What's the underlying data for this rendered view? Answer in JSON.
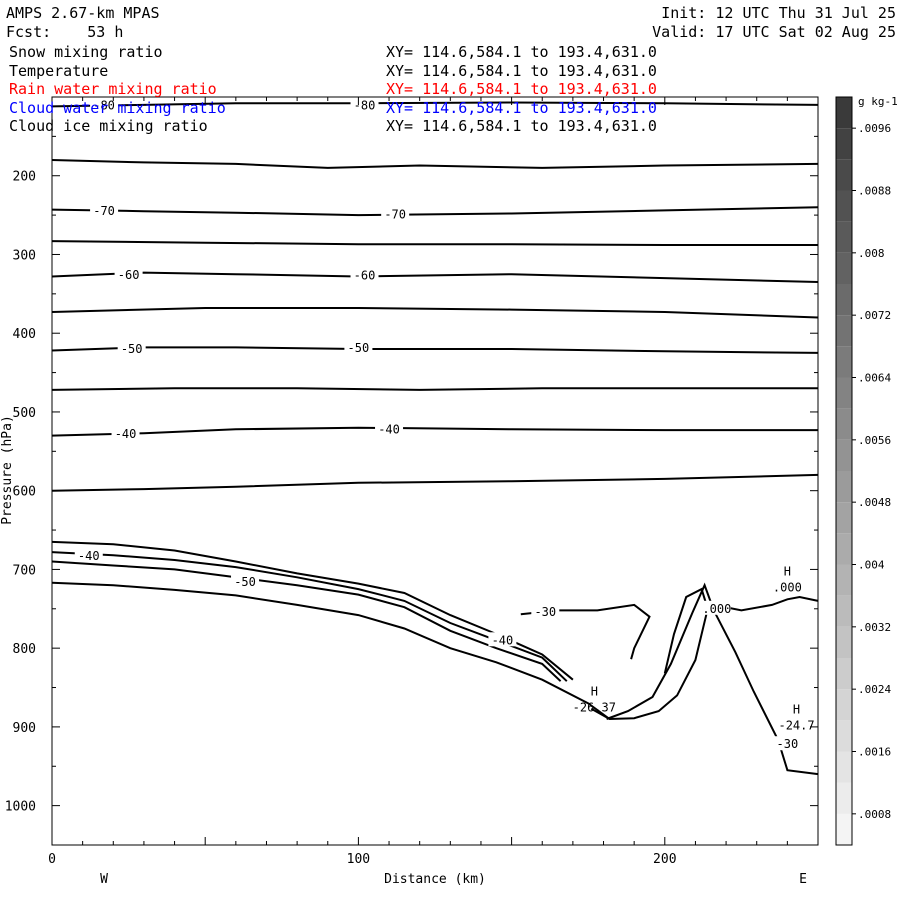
{
  "header": {
    "model": "AMPS 2.67-km MPAS",
    "forecast": "Fcst:    53 h",
    "init": "Init: 12 UTC Thu 31 Jul 25",
    "valid": "Valid: 17 UTC Sat 02 Aug 25"
  },
  "fields": [
    {
      "name": "Snow mixing ratio",
      "xy": "XY= 114.6,584.1 to 193.4,631.0",
      "color": "#000000"
    },
    {
      "name": "Temperature",
      "xy": "XY= 114.6,584.1 to 193.4,631.0",
      "color": "#000000"
    },
    {
      "name": "Rain water mixing ratio",
      "xy": "XY= 114.6,584.1 to 193.4,631.0",
      "color": "#ff0000"
    },
    {
      "name": "Cloud water mixing ratio",
      "xy": "XY= 114.6,584.1 to 193.4,631.0",
      "color": "#0000ff"
    },
    {
      "name": "Cloud ice mixing ratio",
      "xy": "XY= 114.6,584.1 to 193.4,631.0",
      "color": "#000000"
    }
  ],
  "chart_data": {
    "type": "line",
    "title": "",
    "xlabel": "Distance (km)",
    "ylabel": "Pressure (hPa)",
    "xlim": [
      0,
      250
    ],
    "ylim": [
      100,
      1050
    ],
    "y_reversed": true,
    "x_ticks": [
      0,
      100,
      200
    ],
    "y_ticks": [
      200,
      300,
      400,
      500,
      600,
      700,
      800,
      900,
      1000
    ],
    "x_end_labels": {
      "left": "W",
      "right": "E"
    },
    "grid": false,
    "series": [
      {
        "level": -80,
        "points": [
          [
            0,
            112
          ],
          [
            30,
            110
          ],
          [
            60,
            108
          ],
          [
            100,
            108
          ],
          [
            150,
            107
          ],
          [
            200,
            108
          ],
          [
            250,
            110
          ]
        ]
      },
      {
        "level": -75,
        "points": [
          [
            0,
            180
          ],
          [
            30,
            183
          ],
          [
            60,
            185
          ],
          [
            90,
            190
          ],
          [
            120,
            187
          ],
          [
            160,
            190
          ],
          [
            200,
            187
          ],
          [
            250,
            185
          ]
        ]
      },
      {
        "level": -70,
        "points": [
          [
            0,
            243
          ],
          [
            30,
            245
          ],
          [
            60,
            247
          ],
          [
            100,
            250
          ],
          [
            150,
            248
          ],
          [
            200,
            244
          ],
          [
            250,
            240
          ]
        ]
      },
      {
        "level": -65,
        "points": [
          [
            0,
            283
          ],
          [
            50,
            285
          ],
          [
            100,
            287
          ],
          [
            150,
            287
          ],
          [
            200,
            288
          ],
          [
            250,
            288
          ]
        ]
      },
      {
        "level": -60,
        "points": [
          [
            0,
            328
          ],
          [
            30,
            323
          ],
          [
            60,
            325
          ],
          [
            100,
            328
          ],
          [
            150,
            325
          ],
          [
            200,
            330
          ],
          [
            250,
            335
          ]
        ]
      },
      {
        "level": -55,
        "points": [
          [
            0,
            373
          ],
          [
            50,
            368
          ],
          [
            100,
            368
          ],
          [
            150,
            370
          ],
          [
            200,
            373
          ],
          [
            250,
            380
          ]
        ]
      },
      {
        "level": -50,
        "points": [
          [
            0,
            422
          ],
          [
            30,
            418
          ],
          [
            60,
            418
          ],
          [
            100,
            420
          ],
          [
            150,
            420
          ],
          [
            200,
            423
          ],
          [
            250,
            425
          ]
        ]
      },
      {
        "level": -45,
        "points": [
          [
            0,
            472
          ],
          [
            40,
            470
          ],
          [
            80,
            470
          ],
          [
            120,
            472
          ],
          [
            160,
            470
          ],
          [
            200,
            470
          ],
          [
            250,
            470
          ]
        ]
      },
      {
        "level": -40,
        "points": [
          [
            0,
            530
          ],
          [
            30,
            527
          ],
          [
            60,
            522
          ],
          [
            100,
            520
          ],
          [
            150,
            522
          ],
          [
            200,
            523
          ],
          [
            250,
            523
          ]
        ]
      },
      {
        "level": -35,
        "points": [
          [
            0,
            600
          ],
          [
            30,
            598
          ],
          [
            60,
            595
          ],
          [
            100,
            590
          ],
          [
            150,
            588
          ],
          [
            200,
            585
          ],
          [
            250,
            580
          ]
        ]
      },
      {
        "level": -40,
        "points": [
          [
            0,
            665
          ],
          [
            20,
            668
          ],
          [
            40,
            676
          ],
          [
            60,
            690
          ],
          [
            80,
            705
          ],
          [
            100,
            718
          ],
          [
            115,
            730
          ],
          [
            130,
            758
          ],
          [
            145,
            782
          ],
          [
            160,
            808
          ],
          [
            170,
            840
          ]
        ]
      },
      {
        "level": -45,
        "points": [
          [
            0,
            678
          ],
          [
            20,
            682
          ],
          [
            40,
            688
          ],
          [
            60,
            697
          ],
          [
            80,
            710
          ],
          [
            100,
            725
          ],
          [
            115,
            740
          ],
          [
            130,
            768
          ],
          [
            145,
            790
          ],
          [
            160,
            812
          ],
          [
            168,
            842
          ]
        ]
      },
      {
        "level": -50,
        "points": [
          [
            0,
            690
          ],
          [
            20,
            695
          ],
          [
            40,
            700
          ],
          [
            60,
            710
          ],
          [
            80,
            720
          ],
          [
            100,
            732
          ],
          [
            115,
            748
          ],
          [
            130,
            778
          ],
          [
            145,
            800
          ],
          [
            160,
            820
          ],
          [
            166,
            842
          ]
        ]
      },
      {
        "level": -55,
        "points": [
          [
            0,
            717
          ],
          [
            20,
            720
          ],
          [
            40,
            726
          ],
          [
            60,
            733
          ],
          [
            80,
            745
          ],
          [
            100,
            758
          ],
          [
            115,
            775
          ],
          [
            130,
            800
          ],
          [
            145,
            818
          ],
          [
            160,
            840
          ],
          [
            175,
            870
          ],
          [
            182,
            890
          ]
        ]
      },
      {
        "level": -30,
        "points": [
          [
            153,
            757
          ],
          [
            165,
            752
          ],
          [
            178,
            752
          ],
          [
            190,
            745
          ],
          [
            195,
            760
          ],
          [
            190,
            800
          ],
          [
            189,
            814
          ]
        ]
      },
      {
        "level": -25,
        "points": [
          [
            181,
            890
          ],
          [
            188,
            880
          ],
          [
            196,
            862
          ],
          [
            202,
            820
          ],
          [
            209,
            755
          ],
          [
            213,
            720
          ],
          [
            216,
            752
          ],
          [
            223,
            805
          ],
          [
            229,
            855
          ],
          [
            237,
            917
          ],
          [
            240,
            955
          ],
          [
            250,
            960
          ]
        ]
      },
      {
        "level": -27,
        "points": [
          [
            176,
            877
          ],
          [
            182,
            890
          ],
          [
            190,
            889
          ],
          [
            198,
            880
          ],
          [
            204,
            860
          ],
          [
            210,
            815
          ],
          [
            214,
            750
          ],
          [
            212,
            725
          ],
          [
            207,
            735
          ],
          [
            203,
            782
          ],
          [
            200,
            832
          ]
        ]
      },
      {
        "level": -26,
        "points": [
          [
            216,
            745
          ],
          [
            225,
            752
          ],
          [
            235,
            745
          ],
          [
            240,
            738
          ],
          [
            244,
            735
          ],
          [
            250,
            740
          ]
        ]
      }
    ],
    "contour_labels": [
      {
        "text": "-80",
        "x": 102,
        "y": 111
      },
      {
        "text": "-80",
        "x": 17,
        "y": 111
      },
      {
        "text": "-70",
        "x": 17,
        "y": 245
      },
      {
        "text": "-70",
        "x": 112,
        "y": 249
      },
      {
        "text": "-60",
        "x": 25,
        "y": 326
      },
      {
        "text": "-60",
        "x": 102,
        "y": 327
      },
      {
        "text": "-50",
        "x": 26,
        "y": 420
      },
      {
        "text": "-50",
        "x": 100,
        "y": 419
      },
      {
        "text": "-40",
        "x": 24,
        "y": 528
      },
      {
        "text": "-40",
        "x": 110,
        "y": 522
      },
      {
        "text": "-40",
        "x": 12,
        "y": 683
      },
      {
        "text": "-50",
        "x": 63,
        "y": 716
      },
      {
        "text": "-40",
        "x": 147,
        "y": 790
      },
      {
        "text": "-30",
        "x": 161,
        "y": 754
      },
      {
        "text": ".000",
        "x": 217,
        "y": 750
      },
      {
        "text": "-30",
        "x": 240,
        "y": 922
      }
    ],
    "extrema": [
      {
        "marker": "H",
        "value": ".000",
        "x": 240,
        "y": 708
      },
      {
        "marker": "H",
        "value": "-26.37",
        "x": 177,
        "y": 860
      },
      {
        "marker": "H",
        "value": "-24.7",
        "x": 243,
        "y": 883
      }
    ],
    "colorbar": {
      "unit": "g kg-1",
      "min": 0.0004,
      "max": 0.01,
      "step": 0.0004,
      "labels": [
        ".0096",
        ".0088",
        ".008",
        ".0072",
        ".0064",
        ".0056",
        ".0048",
        ".004",
        ".0032",
        ".0024",
        ".0016",
        ".0008"
      ],
      "label_values": [
        0.0096,
        0.0088,
        0.008,
        0.0072,
        0.0064,
        0.0056,
        0.0048,
        0.004,
        0.0032,
        0.0024,
        0.0016,
        0.0008
      ],
      "color_dark": "#3a3a3a",
      "color_light": "#f4f4f4"
    }
  }
}
